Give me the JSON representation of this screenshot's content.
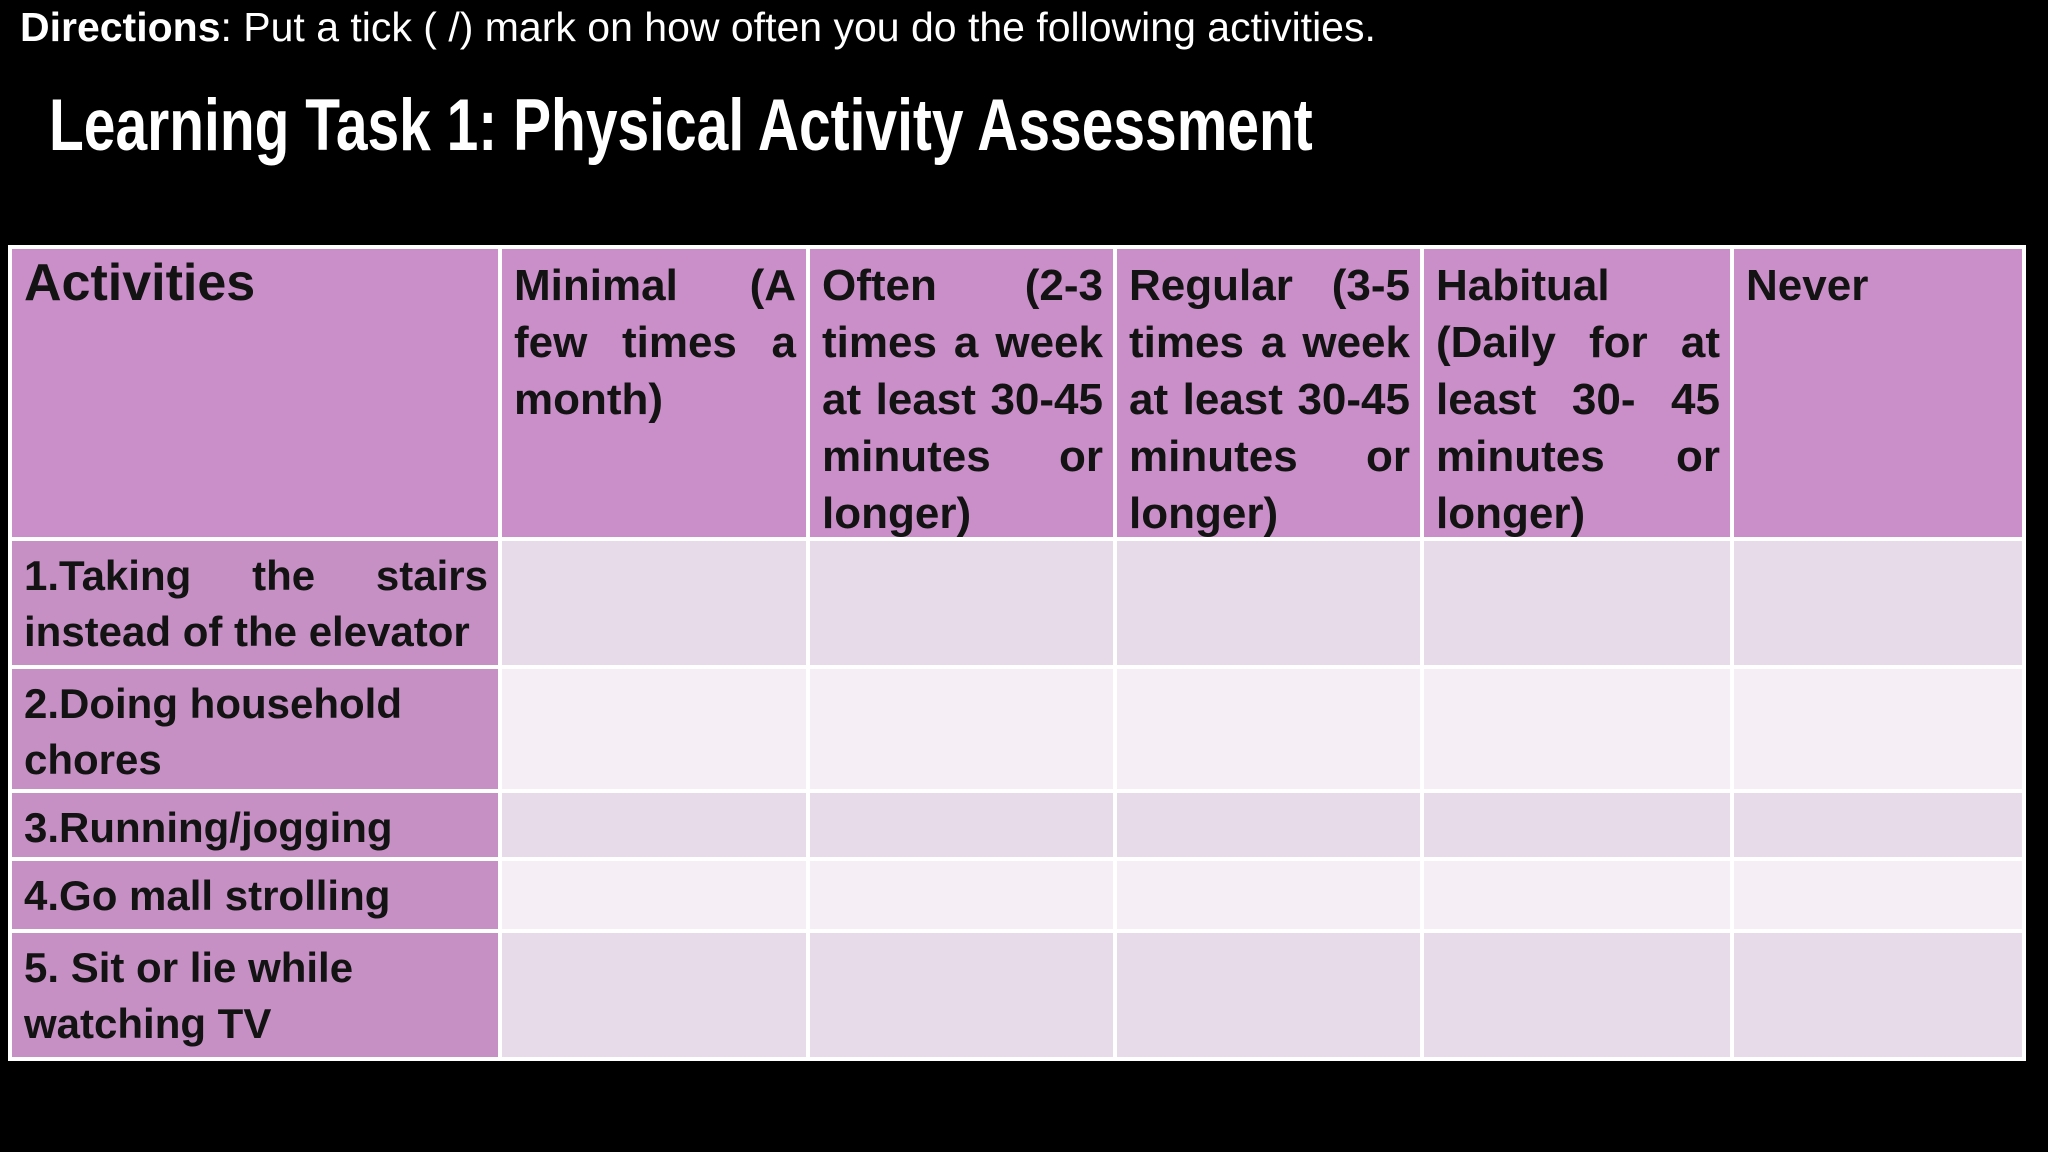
{
  "directions": {
    "label": "Directions",
    "rest": ": Put a tick ( /) mark on how often you do the following activities."
  },
  "title": "Learning Task 1: Physical Activity Assessment",
  "colors": {
    "background": "#000000",
    "grid_line": "#ffffff",
    "header_fill": "#ca8fc9",
    "activity_label_fill": "#c690c5",
    "row_fill_odd": "#e8dbe9",
    "row_fill_even": "#f5eff5",
    "table_text": "#131313",
    "slide_text": "#ffffff"
  },
  "table": {
    "columns": [
      {
        "id": "activities",
        "header": {
          "lines": [
            "Activities"
          ],
          "justify": []
        }
      },
      {
        "id": "minimal",
        "header": {
          "lines": [
            "Minimal (A",
            "few times a",
            "month)"
          ],
          "justify": [
            0,
            1
          ]
        }
      },
      {
        "id": "often",
        "header": {
          "lines": [
            "Often (2-3",
            "times a week",
            "at least 30-45",
            "minutes or",
            "longer)"
          ],
          "justify": [
            0,
            1,
            2,
            3
          ]
        }
      },
      {
        "id": "regular",
        "header": {
          "lines": [
            "Regular (3-5",
            "times a week",
            "at least 30-45",
            "minutes or",
            "longer)"
          ],
          "justify": [
            0,
            1,
            2,
            3
          ]
        }
      },
      {
        "id": "habitual",
        "header": {
          "lines": [
            "Habitual",
            "(Daily for at",
            "least 30- 45",
            "minutes or",
            "longer)"
          ],
          "justify": [
            1,
            2,
            3
          ]
        }
      },
      {
        "id": "never",
        "header": {
          "lines": [
            "Never"
          ],
          "justify": []
        }
      }
    ],
    "rows": [
      {
        "activity": {
          "lines": [
            "1.Taking the stairs",
            "instead of the elevator"
          ],
          "justify": [
            0
          ]
        },
        "cells": [
          "",
          "",
          "",
          "",
          ""
        ]
      },
      {
        "activity": {
          "lines": [
            "2.Doing household",
            "chores"
          ],
          "justify": []
        },
        "cells": [
          "",
          "",
          "",
          "",
          ""
        ]
      },
      {
        "activity": {
          "lines": [
            "3.Running/jogging"
          ],
          "justify": []
        },
        "cells": [
          "",
          "",
          "",
          "",
          ""
        ]
      },
      {
        "activity": {
          "lines": [
            "4.Go mall strolling"
          ],
          "justify": []
        },
        "cells": [
          "",
          "",
          "",
          "",
          ""
        ]
      },
      {
        "activity": {
          "lines": [
            "5. Sit or lie while",
            "watching TV"
          ],
          "justify": []
        },
        "cells": [
          "",
          "",
          "",
          "",
          ""
        ]
      }
    ]
  }
}
